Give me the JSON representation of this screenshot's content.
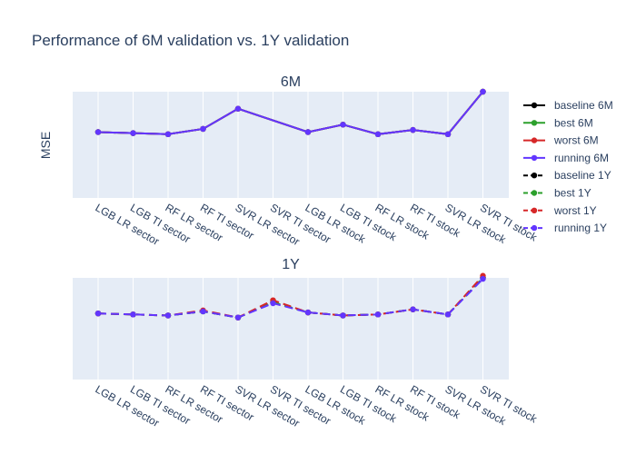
{
  "chart_data": {
    "type": "line",
    "title": "Performance of 6M validation vs. 1Y validation",
    "ylabel": "MSE",
    "categories": [
      "LGB LR sector",
      "LGB TI sector",
      "RF LR sector",
      "RF TI sector",
      "SVR LR sector",
      "SVR TI sector",
      "LGB LR stock",
      "LGB TI stock",
      "RF LR stock",
      "RF TI stock",
      "SVR LR stock",
      "SVR TI stock"
    ],
    "grid": true,
    "legend_position": "right",
    "panels": [
      {
        "subtitle": "6M",
        "ylim": [
          0,
          100
        ],
        "x_indices": [
          0,
          1,
          2,
          3,
          4,
          6,
          7,
          8,
          9,
          10,
          11
        ],
        "series": [
          {
            "name": "baseline 6M",
            "color": "#000000",
            "dash": "solid",
            "values": [
              62,
              61,
              60,
              65,
              84,
              62,
              69,
              60,
              64,
              60,
              100
            ]
          },
          {
            "name": "best 6M",
            "color": "#2ca02c",
            "dash": "solid",
            "values": [
              62,
              61,
              60,
              65,
              84,
              62,
              69,
              60,
              64,
              60,
              100
            ]
          },
          {
            "name": "worst 6M",
            "color": "#d62728",
            "dash": "solid",
            "values": [
              62,
              61,
              60,
              65,
              84,
              62,
              69,
              60,
              64,
              60,
              100
            ]
          },
          {
            "name": "running 6M",
            "color": "#6236ff",
            "dash": "solid",
            "values": [
              62,
              61,
              60,
              65,
              84,
              62,
              69,
              60,
              64,
              60,
              100
            ]
          }
        ]
      },
      {
        "subtitle": "1Y",
        "ylim": [
          0,
          100
        ],
        "x_indices": [
          0,
          1,
          2,
          3,
          4,
          5,
          6,
          7,
          8,
          9,
          10,
          11
        ],
        "series": [
          {
            "name": "baseline 1Y",
            "color": "#000000",
            "dash": "dash",
            "values": [
              65,
              64,
              63,
              67,
              61,
              76,
              66,
              63,
              64,
              69,
              64,
              100
            ]
          },
          {
            "name": "best 1Y",
            "color": "#2ca02c",
            "dash": "dash",
            "values": [
              65,
              64,
              63,
              67,
              61,
              76,
              66,
              63,
              64,
              69,
              64,
              100
            ]
          },
          {
            "name": "worst 1Y",
            "color": "#d62728",
            "dash": "dash",
            "values": [
              65,
              64,
              63,
              68,
              61,
              78,
              66,
              63,
              64,
              69,
              64,
              102
            ]
          },
          {
            "name": "running 1Y",
            "color": "#6236ff",
            "dash": "dash",
            "values": [
              65,
              64,
              63,
              67,
              61,
              75,
              66,
              63,
              64,
              69,
              64,
              99
            ]
          }
        ]
      }
    ]
  }
}
